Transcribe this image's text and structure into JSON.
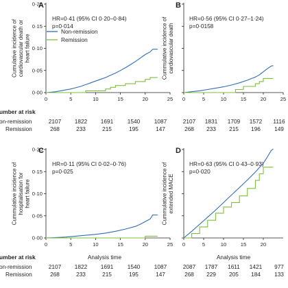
{
  "colors": {
    "non_remission": "#2e6cb5",
    "remission": "#7cbf3a",
    "text": "#231f20"
  },
  "risk_table": {
    "heading": "Number at risk",
    "heading_visible": "umber at risk",
    "row_labels": [
      "on-remission",
      "Remission"
    ]
  },
  "chart_data": [
    {
      "panel": "A",
      "type": "line",
      "ylabel": [
        "Cumulative incidence of",
        "cardiovascular death or",
        "heart failure"
      ],
      "xlabel": "",
      "annotation": [
        "HR=0·41 (95% CI 0·20–0·84)",
        "p=0·014"
      ],
      "legend": [
        "Non-remission",
        "Remission"
      ],
      "ylim": [
        0,
        0.2
      ],
      "xlim": [
        0,
        25
      ],
      "y_ticks": [
        "0·20",
        "0·15",
        "0·10",
        "0·05",
        "0·00"
      ],
      "x_ticks": [
        "0",
        "5",
        "10",
        "15",
        "20",
        "25"
      ],
      "series": [
        {
          "name": "Non-remission",
          "x": [
            0,
            1,
            2,
            3,
            4,
            5,
            6,
            7,
            8,
            9,
            10,
            11,
            12,
            13,
            14,
            15,
            16,
            17,
            18,
            19,
            20,
            21,
            21.5,
            22.5
          ],
          "y": [
            0,
            0.001,
            0.002,
            0.004,
            0.006,
            0.008,
            0.011,
            0.014,
            0.018,
            0.022,
            0.026,
            0.03,
            0.034,
            0.039,
            0.044,
            0.05,
            0.056,
            0.063,
            0.07,
            0.078,
            0.086,
            0.092,
            0.098,
            0.098
          ]
        },
        {
          "name": "Remission",
          "x": [
            0,
            8,
            8,
            12,
            12,
            13,
            13,
            14,
            14,
            16,
            16,
            18,
            18,
            20,
            20,
            21,
            21,
            22.5
          ],
          "y": [
            0,
            0,
            0.004,
            0.004,
            0.008,
            0.008,
            0.012,
            0.012,
            0.016,
            0.016,
            0.02,
            0.02,
            0.025,
            0.025,
            0.03,
            0.03,
            0.034,
            0.034
          ]
        }
      ],
      "risk_at_times": [
        0,
        5,
        10,
        15,
        20
      ],
      "risk_rows": [
        [
          "2107",
          "1822",
          "1691",
          "1540",
          "1087"
        ],
        [
          "268",
          "233",
          "215",
          "195",
          "147"
        ]
      ]
    },
    {
      "panel": "B",
      "type": "line",
      "ylabel": [
        "Cummulative incidence of",
        "cardiovascular death"
      ],
      "xlabel": "",
      "annotation": [
        "HR=0·56 (95% CI 0·27–1·24)",
        "p=0·0158"
      ],
      "ylim": [
        0,
        0.2
      ],
      "xlim": [
        0,
        25
      ],
      "y_ticks": [
        "0·20",
        "0·15",
        "0·10",
        "0·05",
        "0·00"
      ],
      "x_ticks": [
        "0",
        "5",
        "10",
        "15",
        "20",
        "25"
      ],
      "series": [
        {
          "name": "Non-remission",
          "x": [
            0,
            2,
            4,
            6,
            8,
            10,
            12,
            14,
            16,
            18,
            19,
            20,
            21,
            22,
            22.5
          ],
          "y": [
            0,
            0.002,
            0.004,
            0.007,
            0.01,
            0.013,
            0.017,
            0.022,
            0.028,
            0.035,
            0.04,
            0.047,
            0.054,
            0.06,
            0.061
          ]
        },
        {
          "name": "Remission",
          "x": [
            0,
            13,
            13,
            15,
            15,
            18,
            18,
            19,
            19,
            20,
            20,
            22.5
          ],
          "y": [
            0,
            0,
            0.007,
            0.007,
            0.014,
            0.014,
            0.02,
            0.02,
            0.025,
            0.025,
            0.032,
            0.032
          ]
        }
      ],
      "risk_at_times": [
        0,
        5,
        10,
        15,
        20
      ],
      "risk_rows": [
        [
          "2107",
          "1831",
          "1709",
          "1572",
          "1116"
        ],
        [
          "268",
          "233",
          "215",
          "196",
          "149"
        ]
      ]
    },
    {
      "panel": "C",
      "type": "line",
      "ylabel": [
        "Cummulative incidence of",
        "hospitalisation for",
        "heart failure"
      ],
      "xlabel": "Analysis time",
      "annotation": [
        "HR=0·11 (95% CI 0·02–0·76)",
        "p=0·025"
      ],
      "ylim": [
        0,
        0.2
      ],
      "xlim": [
        0,
        25
      ],
      "y_ticks": [
        "0·20",
        "0·15",
        "0·10",
        "0·05",
        "0·00"
      ],
      "x_ticks": [
        "0",
        "5",
        "10",
        "15",
        "20",
        "25"
      ],
      "series": [
        {
          "name": "Non-remission",
          "x": [
            0,
            2,
            4,
            6,
            8,
            10,
            12,
            14,
            16,
            18,
            19,
            20,
            21,
            21.5,
            22.5
          ],
          "y": [
            0,
            0.001,
            0.002,
            0.004,
            0.006,
            0.008,
            0.011,
            0.015,
            0.02,
            0.026,
            0.031,
            0.037,
            0.043,
            0.052,
            0.052
          ]
        },
        {
          "name": "Remission",
          "x": [
            0,
            20,
            20,
            22.5
          ],
          "y": [
            0,
            0,
            0.004,
            0.004
          ]
        }
      ],
      "risk_at_times": [
        0,
        5,
        10,
        15,
        20
      ],
      "risk_rows": [
        [
          "2107",
          "1822",
          "1691",
          "1540",
          "1087"
        ],
        [
          "268",
          "233",
          "215",
          "195",
          "147"
        ]
      ]
    },
    {
      "panel": "D",
      "type": "line",
      "ylabel": [
        "Cummulative incidence of",
        "extended MACE"
      ],
      "xlabel": "Analysis time",
      "annotation": [
        "HR=0·63 (95% CI 0·43–0·93)",
        "p=0·020"
      ],
      "ylim": [
        0,
        0.2
      ],
      "xlim": [
        0,
        25
      ],
      "x_ticks": [
        "0",
        "5",
        "10",
        "15",
        "20"
      ],
      "series": [
        {
          "name": "Non-remission",
          "x": [
            0,
            2,
            4,
            6,
            8,
            10,
            12,
            14,
            16,
            18,
            20,
            21,
            22,
            22.5
          ],
          "y": [
            0,
            0.015,
            0.031,
            0.047,
            0.063,
            0.08,
            0.097,
            0.114,
            0.131,
            0.149,
            0.169,
            0.183,
            0.198,
            0.201
          ]
        },
        {
          "name": "Remission",
          "x": [
            0,
            2,
            2,
            4,
            4,
            6,
            6,
            8,
            8,
            10,
            10,
            12,
            12,
            14,
            14,
            16,
            16,
            18,
            18,
            19,
            19,
            20,
            20,
            22.5
          ],
          "y": [
            0,
            0,
            0.01,
            0.01,
            0.025,
            0.025,
            0.04,
            0.04,
            0.056,
            0.056,
            0.07,
            0.07,
            0.08,
            0.08,
            0.095,
            0.095,
            0.112,
            0.112,
            0.13,
            0.13,
            0.145,
            0.145,
            0.16,
            0.16
          ]
        }
      ],
      "risk_at_times": [
        0,
        5,
        10,
        15,
        20
      ],
      "risk_rows": [
        [
          "2087",
          "1787",
          "1611",
          "1421",
          "977"
        ],
        [
          "268",
          "229",
          "205",
          "184",
          "133"
        ]
      ]
    }
  ]
}
